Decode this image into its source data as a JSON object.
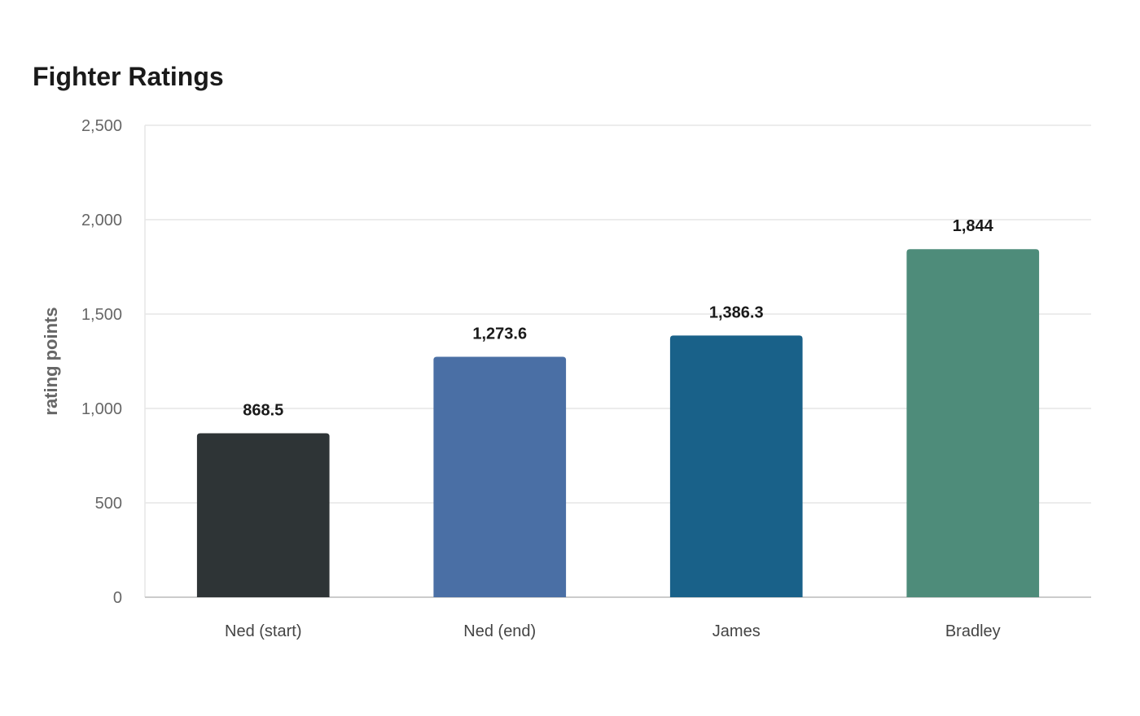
{
  "chart_data": {
    "type": "bar",
    "title": "Fighter Ratings",
    "xlabel": "",
    "ylabel": "rating points",
    "categories": [
      "Ned (start)",
      "Ned (end)",
      "James",
      "Bradley"
    ],
    "values": [
      868.5,
      1273.6,
      1386.3,
      1844
    ],
    "value_labels": [
      "868.5",
      "1,273.6",
      "1,386.3",
      "1,844"
    ],
    "colors": [
      "#2e3436",
      "#4a6fa5",
      "#196189",
      "#4e8c7a"
    ],
    "ylim": [
      0,
      2500
    ],
    "yticks": [
      0,
      500,
      1000,
      1500,
      2000,
      2500
    ],
    "ytick_labels": [
      "0",
      "500",
      "1,000",
      "1,500",
      "2,000",
      "2,500"
    ],
    "grid": true,
    "legend": "none"
  }
}
